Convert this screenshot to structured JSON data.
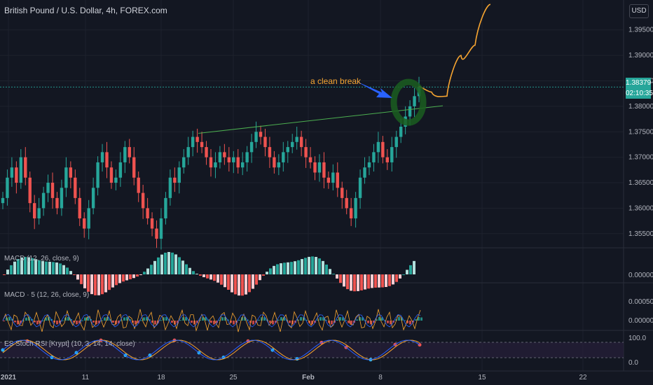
{
  "header": {
    "symbol_title": "British Pound / U.S. Dollar, 4h, FOREX.com",
    "currency_button": "USD"
  },
  "price_axis": {
    "ticks": [
      "1.39500",
      "1.39000",
      "1.38500",
      "1.38000",
      "1.37500",
      "1.37000",
      "1.36500",
      "1.36000",
      "1.35500"
    ],
    "current_price": "1.38379",
    "countdown": "02:10:35"
  },
  "time_axis": {
    "ticks": [
      "2021",
      "11",
      "18",
      "25",
      "Feb",
      "8",
      "15",
      "22"
    ]
  },
  "annotation": {
    "text": "a clean break"
  },
  "panes": {
    "macd1": {
      "label": "MACD (12, 26, close, 9)",
      "axis_ticks": [
        "0.00000"
      ]
    },
    "macd2": {
      "label": "MACD · 5 (12, 26, close, 9)",
      "axis_ticks": [
        "0.00050",
        "0.00000"
      ]
    },
    "stoch": {
      "label": "ES Stoch RSI [Krypt] (10, 3, 14, 14, close)",
      "axis_ticks": [
        "100.0",
        "0.0"
      ]
    }
  },
  "colors": {
    "background": "#131722",
    "up": "#26a69a",
    "down": "#ef5350",
    "annotation": "#f7a531",
    "arrow": "#2962ff",
    "trendline": "#4caf50",
    "circle": "#1b5e20",
    "price_line": "#26a69a"
  },
  "chart_data": {
    "type": "candlestick",
    "ylim": [
      1.3525,
      1.3995
    ],
    "trendline": {
      "from": [
        "Jan 22",
        1.3747
      ],
      "to": [
        "Feb 11",
        1.3801
      ]
    },
    "projection": [
      [
        1.3842,
        1.3828
      ],
      [
        1.3815,
        1.382
      ],
      [
        1.385,
        1.39
      ],
      [
        1.3875,
        1.392
      ],
      [
        1.396,
        1.4
      ]
    ],
    "closes": [
      1.362,
      1.366,
      1.368,
      1.365,
      1.37,
      1.366,
      1.361,
      1.358,
      1.36,
      1.363,
      1.365,
      1.362,
      1.36,
      1.364,
      1.368,
      1.366,
      1.362,
      1.358,
      1.356,
      1.36,
      1.364,
      1.369,
      1.371,
      1.368,
      1.365,
      1.366,
      1.369,
      1.372,
      1.37,
      1.366,
      1.363,
      1.36,
      1.358,
      1.356,
      1.354,
      1.358,
      1.362,
      1.366,
      1.365,
      1.368,
      1.37,
      1.372,
      1.374,
      1.373,
      1.372,
      1.37,
      1.368,
      1.369,
      1.371,
      1.37,
      1.369,
      1.37,
      1.368,
      1.369,
      1.371,
      1.373,
      1.375,
      1.374,
      1.372,
      1.37,
      1.368,
      1.369,
      1.371,
      1.372,
      1.373,
      1.374,
      1.372,
      1.37,
      1.369,
      1.367,
      1.369,
      1.366,
      1.365,
      1.367,
      1.364,
      1.362,
      1.36,
      1.358,
      1.362,
      1.366,
      1.368,
      1.369,
      1.371,
      1.373,
      1.37,
      1.369,
      1.372,
      1.374,
      1.376,
      1.378,
      1.38,
      1.382,
      1.3838
    ]
  }
}
